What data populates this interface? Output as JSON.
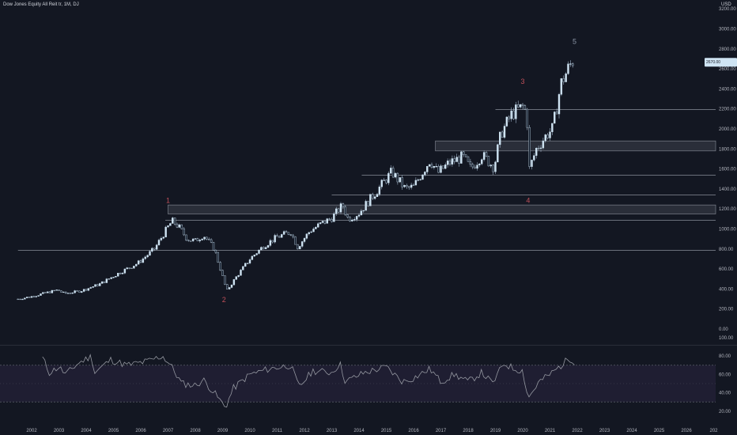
{
  "header": {
    "title": "Dow Jones Equity All Reit tr, 1M, DJ",
    "currency": "USD"
  },
  "colors": {
    "background": "#131722",
    "candle_up": "#cfe4f3",
    "candle_down": "#0f1a2a",
    "candle_wick": "#9fb3c8",
    "level_line": "#8a8f9a",
    "zone_fill": "#2a2e39",
    "wave_label": "#c0505a",
    "rsi_line": "#9598a1",
    "rsi_band": "#2a2440"
  },
  "chart_data": [
    {
      "type": "candlestick",
      "title": "Dow Jones Equity All Reit tr, 1M, DJ",
      "interval": "1M",
      "currency": "USD",
      "x_ticks": [
        "2002",
        "2003",
        "2004",
        "2005",
        "2006",
        "2007",
        "2008",
        "2009",
        "2010",
        "2011",
        "2012",
        "2013",
        "2014",
        "2015",
        "2016",
        "2017",
        "2018",
        "2019",
        "2020",
        "2021",
        "2022",
        "2023",
        "2024",
        "2025",
        "2026",
        "202"
      ],
      "y_ticks": [
        "0.00",
        "200.00",
        "400.00",
        "600.00",
        "800.00",
        "1000.00",
        "1200.00",
        "1400.00",
        "1600.00",
        "1800.00",
        "2000.00",
        "2200.00",
        "2400.00",
        "2600.00",
        "2800.00",
        "3000.00",
        "3200.00"
      ],
      "ylim": [
        -20,
        3210
      ],
      "last_price": 2670,
      "anchors": [
        {
          "t": 2001.5,
          "v": 300
        },
        {
          "t": 2002.0,
          "v": 325
        },
        {
          "t": 2002.5,
          "v": 360
        },
        {
          "t": 2002.95,
          "v": 390
        },
        {
          "t": 2003.2,
          "v": 355
        },
        {
          "t": 2003.8,
          "v": 380
        },
        {
          "t": 2004.5,
          "v": 450
        },
        {
          "t": 2005.2,
          "v": 560
        },
        {
          "t": 2005.9,
          "v": 660
        },
        {
          "t": 2006.5,
          "v": 800
        },
        {
          "t": 2006.95,
          "v": 1000
        },
        {
          "t": 2007.15,
          "v": 1080
        },
        {
          "t": 2007.4,
          "v": 1020
        },
        {
          "t": 2007.7,
          "v": 900
        },
        {
          "t": 2008.0,
          "v": 880
        },
        {
          "t": 2008.3,
          "v": 940
        },
        {
          "t": 2008.7,
          "v": 800
        },
        {
          "t": 2008.95,
          "v": 570
        },
        {
          "t": 2009.15,
          "v": 380
        },
        {
          "t": 2009.5,
          "v": 520
        },
        {
          "t": 2010.0,
          "v": 700
        },
        {
          "t": 2010.5,
          "v": 830
        },
        {
          "t": 2011.0,
          "v": 920
        },
        {
          "t": 2011.5,
          "v": 970
        },
        {
          "t": 2011.75,
          "v": 820
        },
        {
          "t": 2012.2,
          "v": 980
        },
        {
          "t": 2012.6,
          "v": 1050
        },
        {
          "t": 2013.0,
          "v": 1110
        },
        {
          "t": 2013.4,
          "v": 1240
        },
        {
          "t": 2013.6,
          "v": 1100
        },
        {
          "t": 2014.0,
          "v": 1160
        },
        {
          "t": 2014.5,
          "v": 1330
        },
        {
          "t": 2015.0,
          "v": 1500
        },
        {
          "t": 2015.2,
          "v": 1570
        },
        {
          "t": 2015.7,
          "v": 1400
        },
        {
          "t": 2016.0,
          "v": 1420
        },
        {
          "t": 2016.6,
          "v": 1690
        },
        {
          "t": 2016.9,
          "v": 1560
        },
        {
          "t": 2017.3,
          "v": 1660
        },
        {
          "t": 2017.8,
          "v": 1720
        },
        {
          "t": 2018.1,
          "v": 1600
        },
        {
          "t": 2018.5,
          "v": 1740
        },
        {
          "t": 2018.95,
          "v": 1620
        },
        {
          "t": 2019.2,
          "v": 1950
        },
        {
          "t": 2019.6,
          "v": 2150
        },
        {
          "t": 2020.0,
          "v": 2220
        },
        {
          "t": 2020.15,
          "v": 2160
        },
        {
          "t": 2020.25,
          "v": 1600
        },
        {
          "t": 2020.5,
          "v": 1800
        },
        {
          "t": 2020.9,
          "v": 1950
        },
        {
          "t": 2021.1,
          "v": 2000
        },
        {
          "t": 2021.4,
          "v": 2450
        },
        {
          "t": 2021.7,
          "v": 2620
        },
        {
          "t": 2021.85,
          "v": 2690
        }
      ],
      "horizontal_levels": [
        {
          "value": 790,
          "from": 2001.5
        },
        {
          "value": 1090,
          "from": 2006.9
        },
        {
          "value": 1340,
          "from": 2013.0
        },
        {
          "value": 1540,
          "from": 2014.1
        },
        {
          "value": 2200,
          "from": 2019.0
        }
      ],
      "zones": [
        {
          "low": 1150,
          "high": 1240,
          "from": 2007.0
        },
        {
          "low": 1780,
          "high": 1880,
          "from": 2016.8
        }
      ],
      "wave_labels": [
        {
          "label": "1",
          "t": 2007.0,
          "v": 1260
        },
        {
          "label": "2",
          "t": 2009.05,
          "v": 270
        },
        {
          "label": "3",
          "t": 2020.0,
          "v": 2450
        },
        {
          "label": "4",
          "t": 2020.2,
          "v": 1260
        },
        {
          "label": "5",
          "t": 2021.9,
          "v": 2850
        }
      ]
    },
    {
      "type": "line",
      "name": "RSI",
      "y_ticks": [
        "20.00",
        "40.00",
        "60.00",
        "80.00",
        "100.00"
      ],
      "ylim": [
        15,
        100
      ],
      "band": [
        30,
        70
      ],
      "midline": 50,
      "anchors": [
        {
          "t": 2002.4,
          "v": 78
        },
        {
          "t": 2002.65,
          "v": 62
        },
        {
          "t": 2003.0,
          "v": 68
        },
        {
          "t": 2003.25,
          "v": 60
        },
        {
          "t": 2003.7,
          "v": 72
        },
        {
          "t": 2004.2,
          "v": 80
        },
        {
          "t": 2004.3,
          "v": 62
        },
        {
          "t": 2004.9,
          "v": 76
        },
        {
          "t": 2005.5,
          "v": 70
        },
        {
          "t": 2006.2,
          "v": 74
        },
        {
          "t": 2006.8,
          "v": 80
        },
        {
          "t": 2007.1,
          "v": 70
        },
        {
          "t": 2007.5,
          "v": 50
        },
        {
          "t": 2008.0,
          "v": 48
        },
        {
          "t": 2008.3,
          "v": 54
        },
        {
          "t": 2008.8,
          "v": 36
        },
        {
          "t": 2009.1,
          "v": 24
        },
        {
          "t": 2009.4,
          "v": 45
        },
        {
          "t": 2010.0,
          "v": 60
        },
        {
          "t": 2010.7,
          "v": 66
        },
        {
          "t": 2011.5,
          "v": 70
        },
        {
          "t": 2011.8,
          "v": 46
        },
        {
          "t": 2012.3,
          "v": 64
        },
        {
          "t": 2013.0,
          "v": 62
        },
        {
          "t": 2013.3,
          "v": 72
        },
        {
          "t": 2013.5,
          "v": 52
        },
        {
          "t": 2014.2,
          "v": 62
        },
        {
          "t": 2015.0,
          "v": 68
        },
        {
          "t": 2015.6,
          "v": 52
        },
        {
          "t": 2016.0,
          "v": 56
        },
        {
          "t": 2016.6,
          "v": 66
        },
        {
          "t": 2017.0,
          "v": 52
        },
        {
          "t": 2017.5,
          "v": 60
        },
        {
          "t": 2018.0,
          "v": 52
        },
        {
          "t": 2018.5,
          "v": 62
        },
        {
          "t": 2018.9,
          "v": 50
        },
        {
          "t": 2019.3,
          "v": 72
        },
        {
          "t": 2019.7,
          "v": 66
        },
        {
          "t": 2020.0,
          "v": 64
        },
        {
          "t": 2020.2,
          "v": 34
        },
        {
          "t": 2020.6,
          "v": 52
        },
        {
          "t": 2021.0,
          "v": 60
        },
        {
          "t": 2021.5,
          "v": 72
        },
        {
          "t": 2021.7,
          "v": 78
        },
        {
          "t": 2021.9,
          "v": 74
        }
      ]
    }
  ]
}
